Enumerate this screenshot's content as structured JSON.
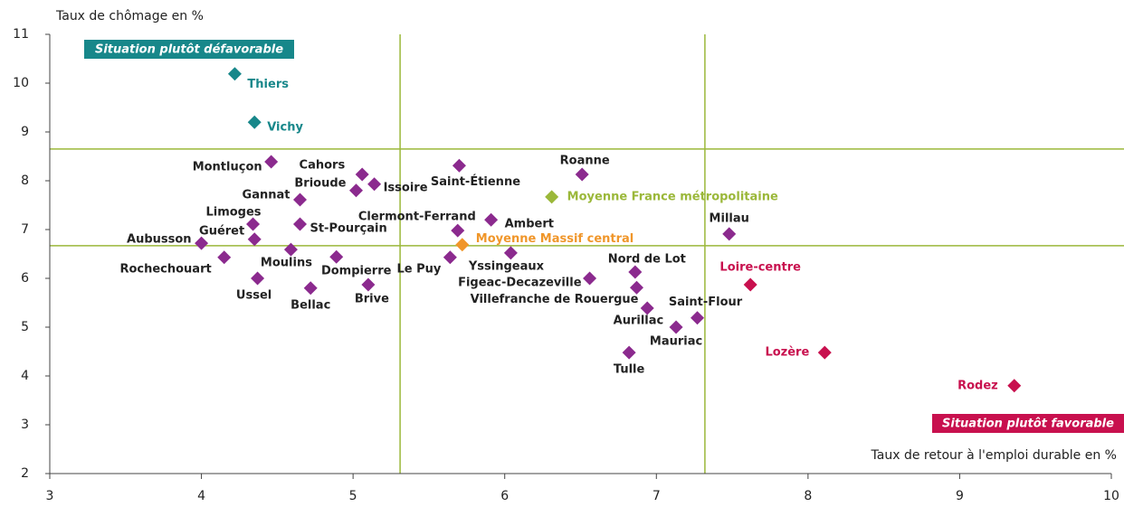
{
  "chart_data": {
    "type": "scatter",
    "y_label": "Taux de chômage en %",
    "x_label": "Taux de retour à l'emploi durable en %",
    "annotations": [
      {
        "text": "Situation plutôt défavorable",
        "color": "#17878a"
      },
      {
        "text": "Situation plutôt favorable",
        "color": "#c8104e"
      }
    ],
    "xlim": [
      3,
      10
    ],
    "xticks": [
      3,
      4,
      5,
      6,
      7,
      8,
      9,
      10
    ],
    "ylim": [
      2,
      11
    ],
    "yticks": [
      2,
      3,
      4,
      5,
      6,
      7,
      8,
      9,
      10,
      11
    ],
    "reference_x": [
      5.31,
      7.32
    ],
    "reference_y": [
      8.65,
      6.67
    ],
    "reference_color": "#9bb83a",
    "points": [
      {
        "label": "Thiers",
        "x": 4.22,
        "y": 10.19,
        "color": "#17878a"
      },
      {
        "label": "Vichy",
        "x": 4.35,
        "y": 9.2,
        "color": "#17878a"
      },
      {
        "label": "Montluçon",
        "x": 4.46,
        "y": 8.39,
        "color": "#8b2a8e"
      },
      {
        "label": "Cahors",
        "x": 5.06,
        "y": 8.13,
        "color": "#8b2a8e"
      },
      {
        "label": "Issoire",
        "x": 5.14,
        "y": 7.93,
        "color": "#8b2a8e"
      },
      {
        "label": "Brioude",
        "x": 5.02,
        "y": 7.8,
        "color": "#8b2a8e"
      },
      {
        "label": "Saint-Étienne",
        "x": 5.7,
        "y": 8.31,
        "color": "#8b2a8e"
      },
      {
        "label": "Roanne",
        "x": 6.51,
        "y": 8.13,
        "color": "#8b2a8e"
      },
      {
        "label": "Moyenne France métropolitaine",
        "x": 6.31,
        "y": 7.67,
        "color": "#9bb83a"
      },
      {
        "label": "Gannat",
        "x": 4.65,
        "y": 7.61,
        "color": "#8b2a8e"
      },
      {
        "label": "Limoges",
        "x": 4.34,
        "y": 7.11,
        "color": "#8b2a8e"
      },
      {
        "label": "St-Pourçain",
        "x": 4.65,
        "y": 7.11,
        "color": "#8b2a8e"
      },
      {
        "label": "Guéret",
        "x": 4.35,
        "y": 6.8,
        "color": "#8b2a8e"
      },
      {
        "label": "Aubusson",
        "x": 4.0,
        "y": 6.72,
        "color": "#8b2a8e"
      },
      {
        "label": "Clermont-Ferrand",
        "x": 5.69,
        "y": 6.98,
        "color": "#8b2a8e"
      },
      {
        "label": "Ambert",
        "x": 5.91,
        "y": 7.2,
        "color": "#8b2a8e"
      },
      {
        "label": "Millau",
        "x": 7.48,
        "y": 6.91,
        "color": "#8b2a8e"
      },
      {
        "label": "Moyenne Massif central",
        "x": 5.72,
        "y": 6.69,
        "color": "#f0962a"
      },
      {
        "label": "Moulins",
        "x": 4.59,
        "y": 6.59,
        "color": "#8b2a8e"
      },
      {
        "label": "Rochechouart",
        "x": 4.15,
        "y": 6.43,
        "color": "#8b2a8e"
      },
      {
        "label": "Dompierre",
        "x": 4.89,
        "y": 6.44,
        "color": "#8b2a8e"
      },
      {
        "label": "Le Puy",
        "x": 5.64,
        "y": 6.43,
        "color": "#8b2a8e"
      },
      {
        "label": "Yssingeaux",
        "x": 6.04,
        "y": 6.52,
        "color": "#8b2a8e"
      },
      {
        "label": "Ussel",
        "x": 4.37,
        "y": 6.0,
        "color": "#8b2a8e"
      },
      {
        "label": "Bellac",
        "x": 4.72,
        "y": 5.8,
        "color": "#8b2a8e"
      },
      {
        "label": "Brive",
        "x": 5.1,
        "y": 5.87,
        "color": "#8b2a8e"
      },
      {
        "label": "Figeac-Decazeville",
        "x": 6.56,
        "y": 6.0,
        "color": "#8b2a8e"
      },
      {
        "label": "Nord de Lot",
        "x": 6.86,
        "y": 6.13,
        "color": "#8b2a8e"
      },
      {
        "label": "Villefranche de Rouergue",
        "x": 6.87,
        "y": 5.81,
        "color": "#8b2a8e"
      },
      {
        "label": "Aurillac",
        "x": 6.94,
        "y": 5.39,
        "color": "#8b2a8e"
      },
      {
        "label": "Saint-Flour",
        "x": 7.27,
        "y": 5.19,
        "color": "#8b2a8e"
      },
      {
        "label": "Mauriac",
        "x": 7.13,
        "y": 5.0,
        "color": "#8b2a8e"
      },
      {
        "label": "Tulle",
        "x": 6.82,
        "y": 4.48,
        "color": "#8b2a8e"
      },
      {
        "label": "Loire-centre",
        "x": 7.62,
        "y": 5.87,
        "color": "#c8104e"
      },
      {
        "label": "Lozère",
        "x": 8.11,
        "y": 4.48,
        "color": "#c8104e"
      },
      {
        "label": "Rodez",
        "x": 9.36,
        "y": 3.8,
        "color": "#c8104e"
      }
    ]
  }
}
